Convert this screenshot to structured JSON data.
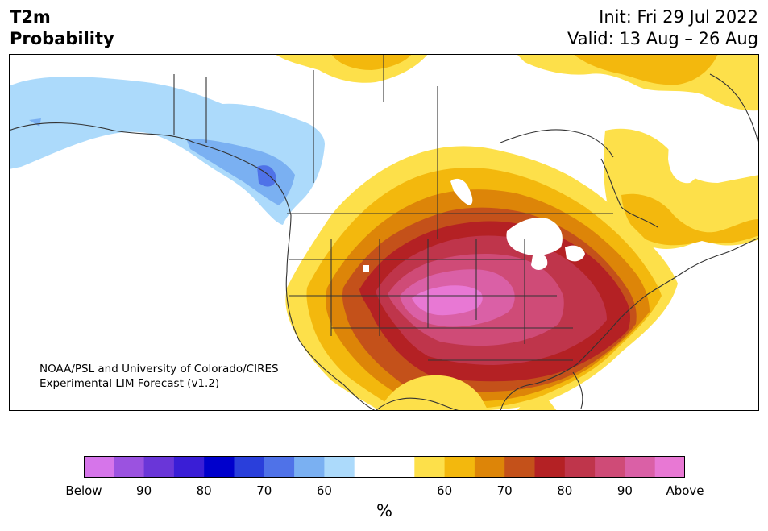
{
  "header": {
    "variable": "T2m",
    "field": "Probability",
    "init": "Init: Fri 29 Jul 2022",
    "valid": "Valid: 13 Aug – 26 Aug"
  },
  "credit": {
    "line1": "NOAA/PSL and University of Colorado/CIRES",
    "line2": "Experimental LIM Forecast (v1.2)"
  },
  "colorbar": {
    "unit": "%",
    "colors": [
      "#d675ea",
      "#9b52e0",
      "#6a36d8",
      "#3a1ed6",
      "#0000cc",
      "#2a3fdb",
      "#4f72e8",
      "#7ab0f2",
      "#acdafb",
      "#ffffff",
      "#ffffff",
      "#fde04a",
      "#f3b80d",
      "#dd8508",
      "#c4511a",
      "#b42124",
      "#bf354b",
      "#cf4b77",
      "#da60a6",
      "#e878d4"
    ],
    "ticks": [
      "Below",
      "90",
      "80",
      "70",
      "60",
      "60",
      "70",
      "80",
      "90",
      "Above"
    ]
  },
  "legend_meaning": {
    "blue": "below-normal probability",
    "warm": "above-normal probability"
  }
}
